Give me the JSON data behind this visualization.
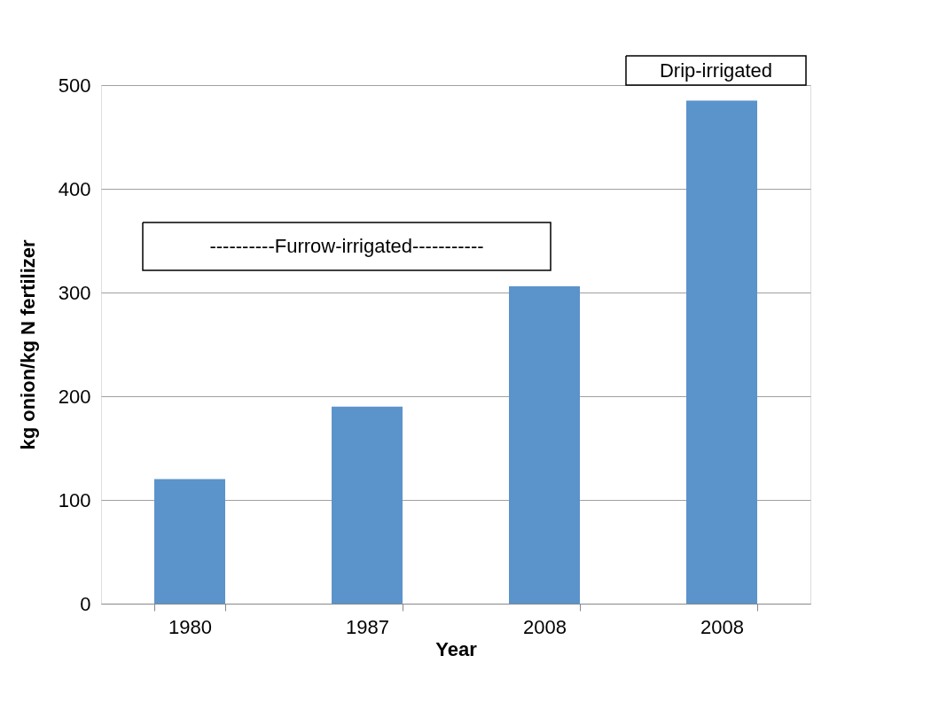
{
  "chart_data": {
    "type": "bar",
    "xlabel": "Year",
    "ylabel": "kg onion/kg N fertilizer",
    "categories": [
      "1980",
      "1987",
      "2008",
      "2008"
    ],
    "values": [
      120,
      190,
      306,
      485
    ],
    "color": "#5b93cb",
    "ylim": [
      0,
      500
    ],
    "yticks": [
      0,
      100,
      200,
      300,
      400,
      500
    ],
    "grid": "y",
    "annotations": [
      "----------Furrow-irrigated-----------",
      "Drip-irrigated"
    ]
  }
}
